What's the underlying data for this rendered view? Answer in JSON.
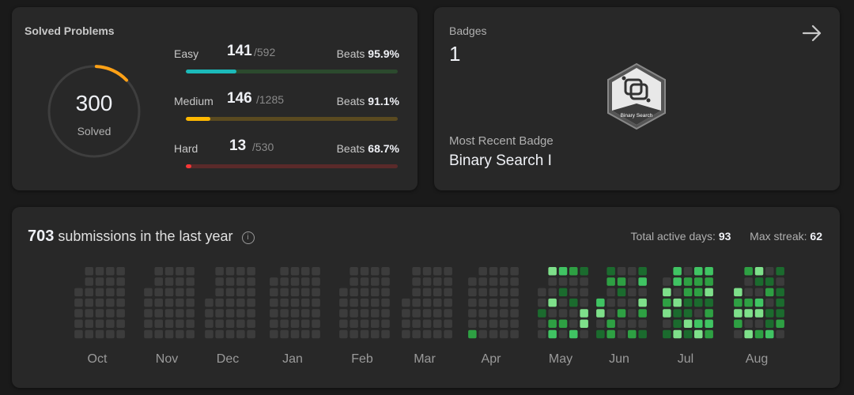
{
  "solved": {
    "title": "Solved Problems",
    "total": "300",
    "total_label": "Solved",
    "ring_fraction": 0.12,
    "rows": [
      {
        "name": "Easy",
        "solved": "141",
        "total": "/592",
        "beats_label": "Beats",
        "beats": "95.9%",
        "fraction": 0.238,
        "color": "#1cbaba",
        "track": "#2c4a2e"
      },
      {
        "name": "Medium",
        "solved": "146",
        "total": "/1285",
        "beats_label": "Beats",
        "beats": "91.1%",
        "fraction": 0.114,
        "color": "#ffb800",
        "track": "#5a4a20"
      },
      {
        "name": "Hard",
        "solved": "13",
        "total": "/530",
        "beats_label": "Beats",
        "beats": "68.7%",
        "fraction": 0.025,
        "color": "#f63737",
        "track": "#5a2a2a"
      }
    ]
  },
  "badges": {
    "title": "Badges",
    "count": "1",
    "recent_label": "Most Recent Badge",
    "recent_name": "Binary Search I",
    "badge_caption": "Binary Search"
  },
  "submissions": {
    "count": "703",
    "label": "submissions in the last year",
    "active_label": "Total active days:",
    "active_days": "93",
    "streak_label": "Max streak:",
    "max_streak": "62",
    "months": [
      "Oct",
      "Nov",
      "Dec",
      "Jan",
      "Feb",
      "Mar",
      "Apr",
      "May",
      "Jun",
      "Jul",
      "Aug"
    ]
  }
}
